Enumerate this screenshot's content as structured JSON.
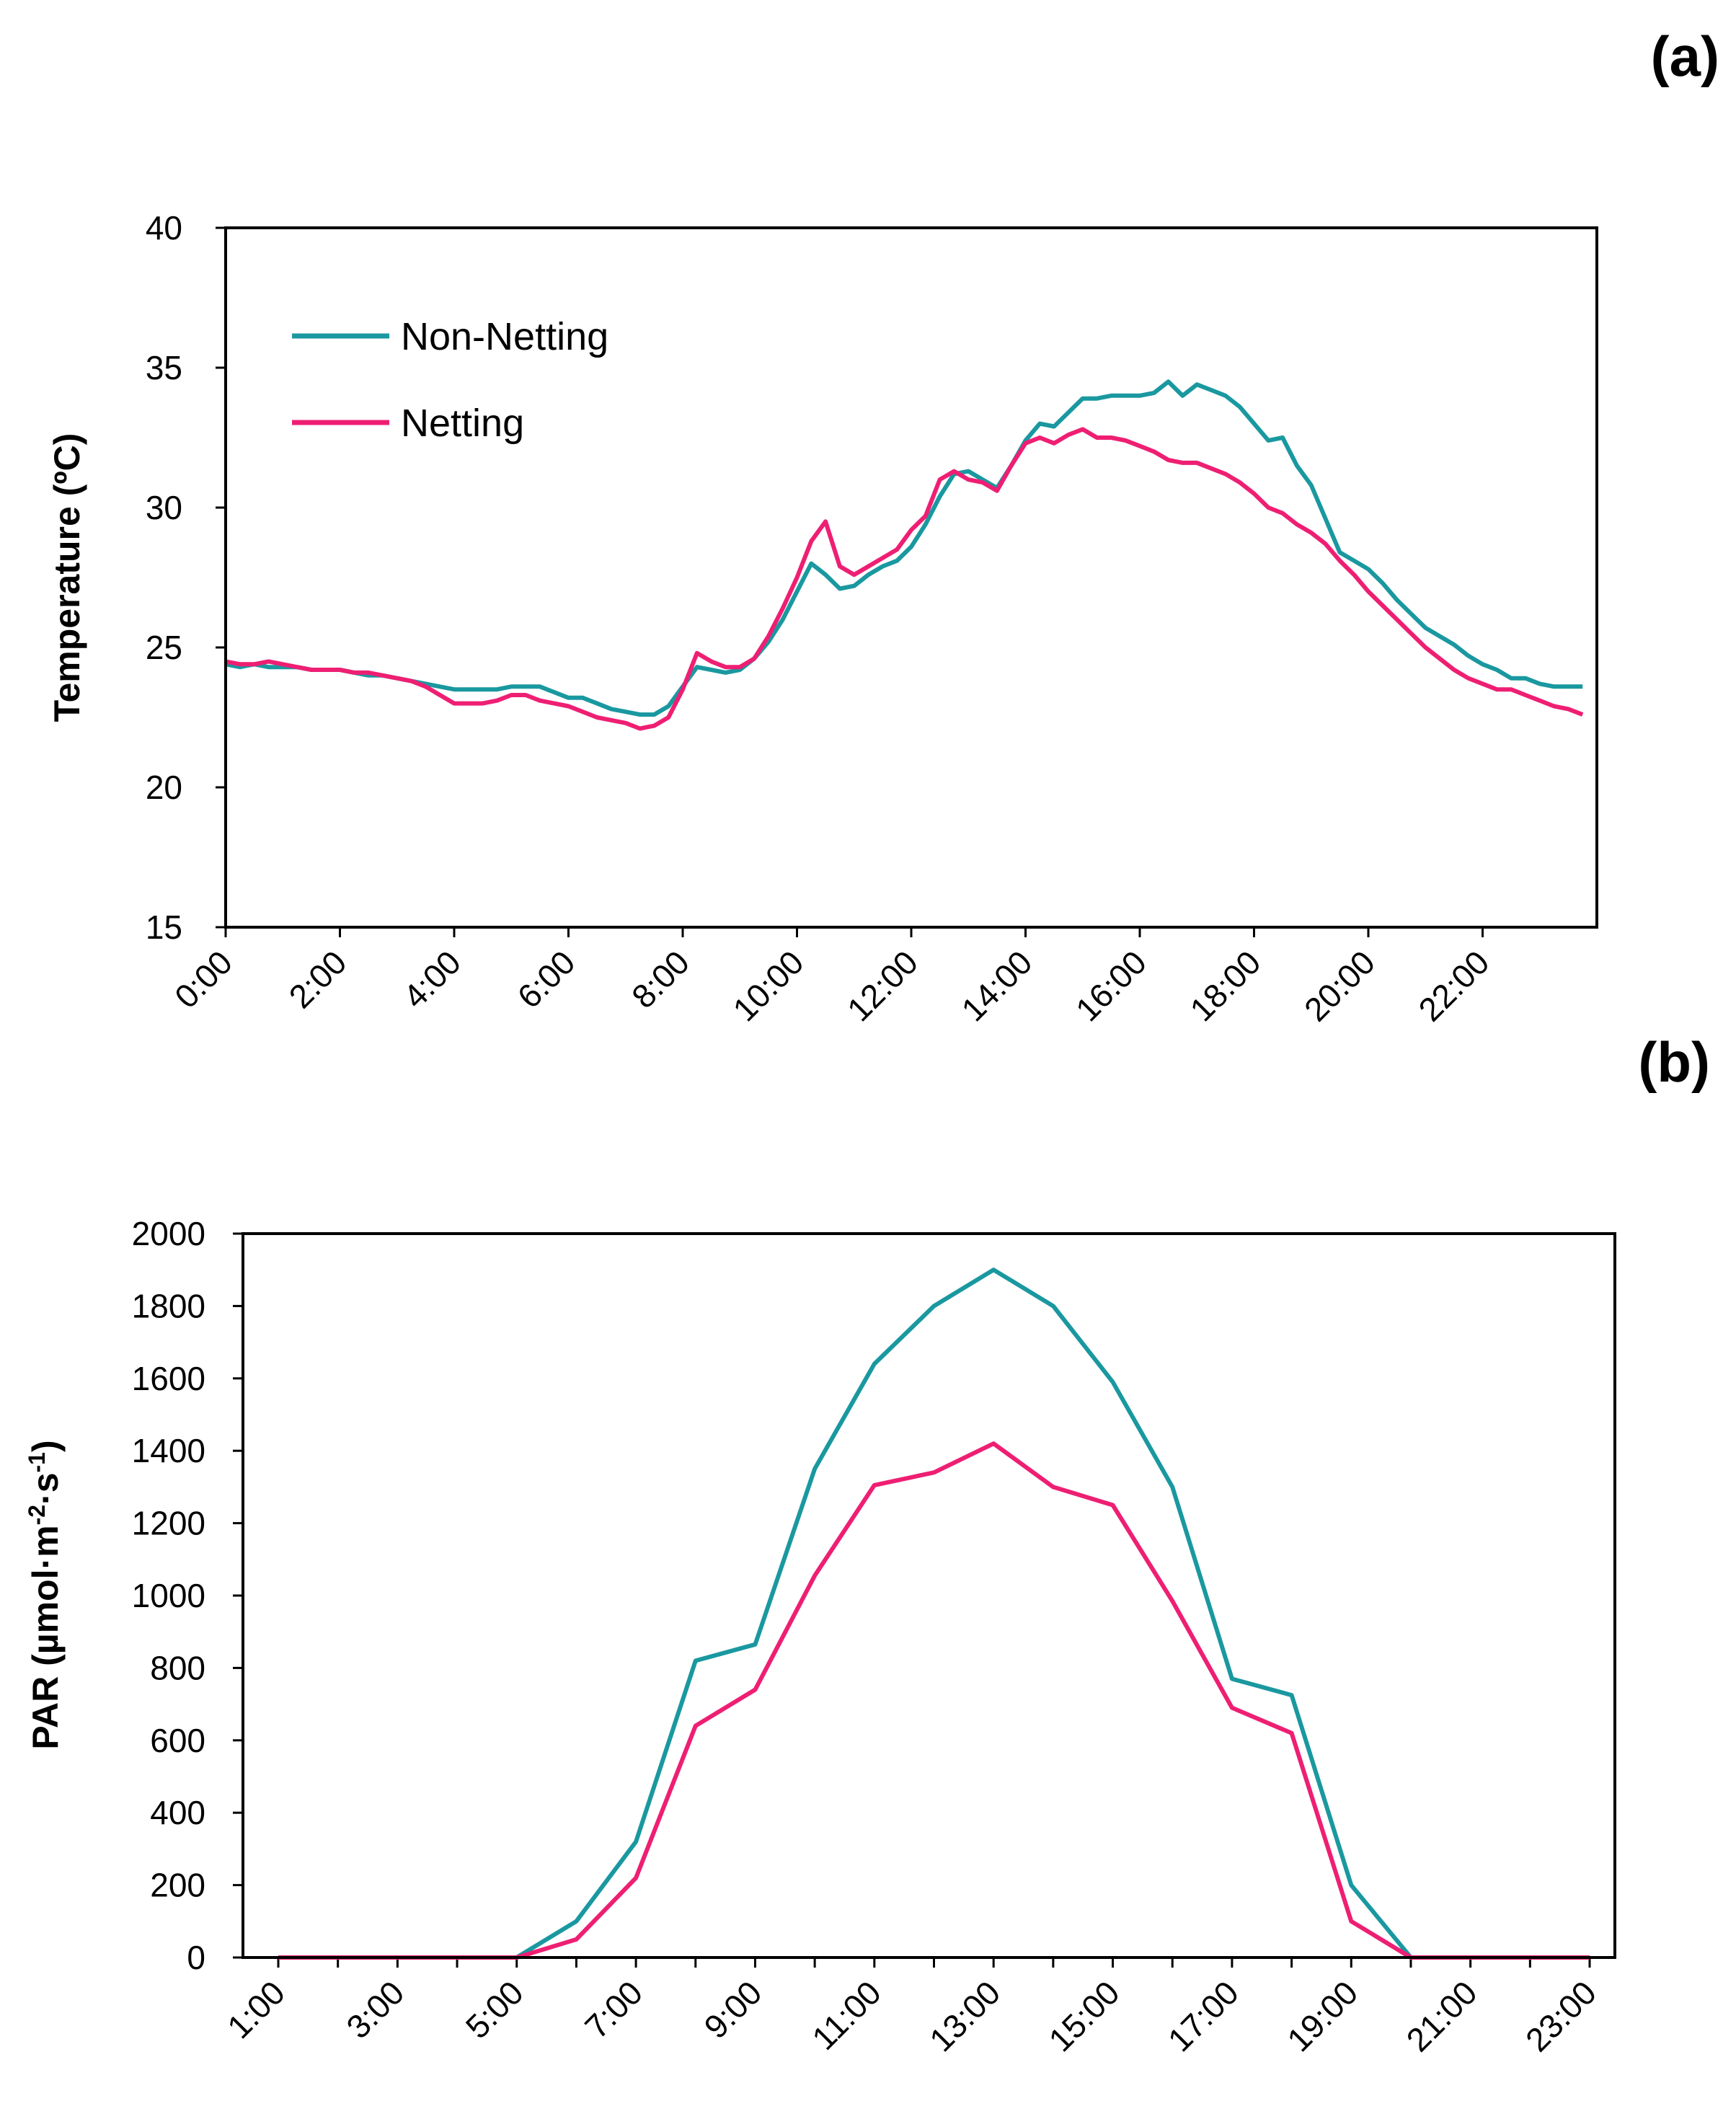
{
  "chart_data": [
    {
      "type": "line",
      "panel_label": "(a)",
      "ylabel": "Temperature (ºC)",
      "xlabel": "",
      "ylim": [
        15,
        40
      ],
      "yticks": [
        "15",
        "20",
        "25",
        "30",
        "35",
        "40"
      ],
      "x_tick_labels": [
        "0:00",
        "2:00",
        "4:00",
        "6:00",
        "8:00",
        "10:00",
        "12:00",
        "14:00",
        "16:00",
        "18:00",
        "20:00",
        "22:00"
      ],
      "x_start_hour": 0,
      "x_end_hour": 23.83,
      "x_step_hours": 0.25,
      "grid": false,
      "legend_position": "top-left",
      "series": [
        {
          "name": "Non-Netting",
          "color": "#1a98a0",
          "values": [
            24.4,
            24.3,
            24.4,
            24.3,
            24.3,
            24.3,
            24.2,
            24.2,
            24.2,
            24.1,
            24.0,
            24.0,
            23.9,
            23.8,
            23.7,
            23.6,
            23.5,
            23.5,
            23.5,
            23.5,
            23.6,
            23.6,
            23.6,
            23.4,
            23.2,
            23.2,
            23.0,
            22.8,
            22.7,
            22.6,
            22.6,
            22.9,
            23.6,
            24.3,
            24.2,
            24.1,
            24.2,
            24.6,
            25.2,
            26.0,
            27.0,
            28.0,
            27.6,
            27.1,
            27.2,
            27.6,
            27.9,
            28.1,
            28.6,
            29.4,
            30.4,
            31.2,
            31.3,
            31.0,
            30.7,
            31.5,
            32.4,
            33.0,
            32.9,
            33.4,
            33.9,
            33.9,
            34.0,
            34.0,
            34.0,
            34.1,
            34.5,
            34.0,
            34.4,
            34.2,
            34.0,
            33.6,
            33.0,
            32.4,
            32.5,
            31.5,
            30.8,
            29.6,
            28.4,
            28.1,
            27.8,
            27.3,
            26.7,
            26.2,
            25.7,
            25.4,
            25.1,
            24.7,
            24.4,
            24.2,
            23.9,
            23.9,
            23.7,
            23.6,
            23.6,
            23.6
          ]
        },
        {
          "name": "Netting",
          "color": "#ee1f73",
          "values": [
            24.5,
            24.4,
            24.4,
            24.5,
            24.4,
            24.3,
            24.2,
            24.2,
            24.2,
            24.1,
            24.1,
            24.0,
            23.9,
            23.8,
            23.6,
            23.3,
            23.0,
            23.0,
            23.0,
            23.1,
            23.3,
            23.3,
            23.1,
            23.0,
            22.9,
            22.7,
            22.5,
            22.4,
            22.3,
            22.1,
            22.2,
            22.5,
            23.5,
            24.8,
            24.5,
            24.3,
            24.3,
            24.6,
            25.4,
            26.4,
            27.5,
            28.8,
            29.5,
            27.9,
            27.6,
            27.9,
            28.2,
            28.5,
            29.2,
            29.7,
            31.0,
            31.3,
            31.0,
            30.9,
            30.6,
            31.5,
            32.3,
            32.5,
            32.3,
            32.6,
            32.8,
            32.5,
            32.5,
            32.4,
            32.2,
            32.0,
            31.7,
            31.6,
            31.6,
            31.4,
            31.2,
            30.9,
            30.5,
            30.0,
            29.8,
            29.4,
            29.1,
            28.7,
            28.1,
            27.6,
            27.0,
            26.5,
            26.0,
            25.5,
            25.0,
            24.6,
            24.2,
            23.9,
            23.7,
            23.5,
            23.5,
            23.3,
            23.1,
            22.9,
            22.8,
            22.6
          ]
        }
      ]
    },
    {
      "type": "line",
      "panel_label": "(b)",
      "ylabel_main": "PAR (µmol·m",
      "ylabel_sup1": "-2",
      "ylabel_mid": "·s",
      "ylabel_sup2": "-1",
      "ylabel_end": ")",
      "xlabel": "",
      "ylim": [
        0,
        2000
      ],
      "yticks": [
        "0",
        "200",
        "400",
        "600",
        "800",
        "1000",
        "1200",
        "1400",
        "1600",
        "1800",
        "2000"
      ],
      "x": [
        1,
        2,
        3,
        4,
        5,
        6,
        7,
        8,
        9,
        10,
        11,
        12,
        13,
        14,
        15,
        16,
        17,
        18,
        19,
        20,
        21,
        22,
        23
      ],
      "x_tick_labels": [
        "1:00",
        "3:00",
        "5:00",
        "7:00",
        "9:00",
        "11:00",
        "13:00",
        "15:00",
        "17:00",
        "19:00",
        "21:00",
        "23:00"
      ],
      "grid": false,
      "series": [
        {
          "name": "Non-Netting",
          "color": "#1a98a0",
          "values": [
            0,
            0,
            0,
            0,
            0,
            100,
            320,
            820,
            865,
            1350,
            1640,
            1800,
            1900,
            1800,
            1590,
            1300,
            770,
            725,
            200,
            0,
            0,
            0,
            0
          ]
        },
        {
          "name": "Netting",
          "color": "#ee1f73",
          "values": [
            0,
            0,
            0,
            0,
            0,
            50,
            220,
            640,
            740,
            1055,
            1305,
            1340,
            1420,
            1300,
            1250,
            985,
            690,
            620,
            100,
            0,
            0,
            0,
            0
          ]
        }
      ]
    }
  ]
}
